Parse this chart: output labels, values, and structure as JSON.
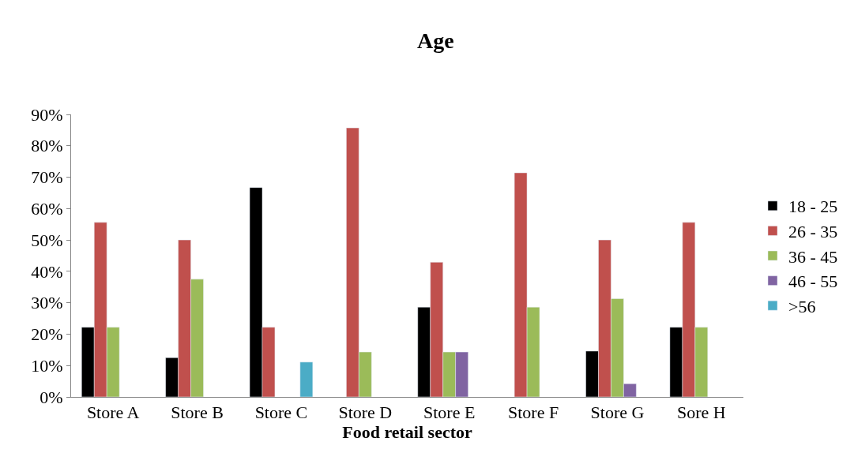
{
  "chart_data": {
    "type": "bar",
    "title": "Age",
    "xlabel": "Food retail sector",
    "categories": [
      "Store A",
      "Store B",
      "Store C",
      "Store D",
      "Store E",
      "Store F",
      "Store G",
      "Sore H"
    ],
    "series": [
      {
        "name": "18 - 25",
        "color": "#000000",
        "values": [
          22.2,
          12.5,
          66.7,
          null,
          28.6,
          null,
          14.6,
          22.2
        ]
      },
      {
        "name": "26 - 35",
        "color": "#c0504d",
        "values": [
          55.6,
          50,
          22.2,
          85.7,
          42.9,
          71.4,
          50,
          55.6
        ]
      },
      {
        "name": "36 - 45",
        "color": "#9bbb59",
        "values": [
          22.2,
          37.5,
          null,
          14.3,
          14.3,
          28.6,
          31.3,
          22.2
        ]
      },
      {
        "name": "46 - 55",
        "color": "#8064a2",
        "values": [
          null,
          null,
          null,
          null,
          14.3,
          null,
          4.2,
          null
        ]
      },
      {
        "name": ">56",
        "color": "#4bacc6",
        "values": [
          null,
          null,
          11.1,
          null,
          null,
          null,
          null,
          null
        ]
      }
    ],
    "ylim": [
      0,
      90
    ],
    "yticks": [
      {
        "value": 0,
        "label": "0%"
      },
      {
        "value": 10,
        "label": "10%"
      },
      {
        "value": 20,
        "label": "20%"
      },
      {
        "value": 30,
        "label": "30%"
      },
      {
        "value": 40,
        "label": "40%"
      },
      {
        "value": 50,
        "label": "50%"
      },
      {
        "value": 60,
        "label": "60%"
      },
      {
        "value": 70,
        "label": "70%"
      },
      {
        "value": 80,
        "label": "80%"
      },
      {
        "value": 90,
        "label": "90%"
      }
    ],
    "legend": "right"
  }
}
